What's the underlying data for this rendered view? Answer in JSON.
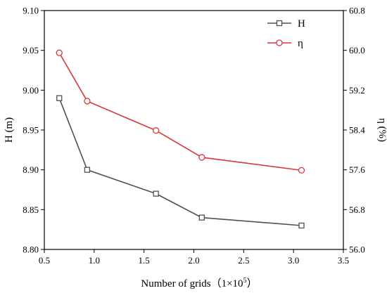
{
  "chart_data": {
    "type": "line",
    "x": [
      0.65,
      0.93,
      1.62,
      2.08,
      3.08
    ],
    "xlim": [
      0.5,
      3.5
    ],
    "xticks": [
      0.5,
      1.0,
      1.5,
      2.0,
      2.5,
      3.0,
      3.5
    ],
    "xtick_labels": [
      "0.5",
      "1.0",
      "1.5",
      "2.0",
      "2.5",
      "3.0",
      "3.5"
    ],
    "xlabel_main": "Number of grids",
    "xlabel_paren_open": "（",
    "xlabel_base": "1×10",
    "xlabel_exp": "5",
    "xlabel_paren_close": "）",
    "y_left": {
      "label": "H (m)",
      "lim": [
        8.8,
        9.1
      ],
      "ticks": [
        8.8,
        8.85,
        8.9,
        8.95,
        9.0,
        9.05,
        9.1
      ],
      "tick_labels": [
        "8.80",
        "8.85",
        "8.90",
        "8.95",
        "9.00",
        "9.05",
        "9.10"
      ]
    },
    "y_right": {
      "label": "η (%)",
      "lim": [
        56.0,
        60.8
      ],
      "ticks": [
        56.0,
        56.8,
        57.6,
        58.4,
        59.2,
        60.0,
        60.8
      ],
      "tick_labels": [
        "56.0",
        "56.8",
        "57.6",
        "58.4",
        "59.2",
        "60.0",
        "60.8"
      ]
    },
    "series": [
      {
        "name": "H",
        "axis": "left",
        "marker": "square",
        "color": "#505050",
        "values": [
          8.99,
          8.9,
          8.87,
          8.84,
          8.83
        ]
      },
      {
        "name": "η",
        "axis": "right",
        "marker": "circle",
        "color": "#d9383a",
        "values": [
          59.95,
          58.98,
          58.39,
          57.85,
          57.59
        ]
      }
    ],
    "legend_position": "top-right",
    "grid": false
  }
}
